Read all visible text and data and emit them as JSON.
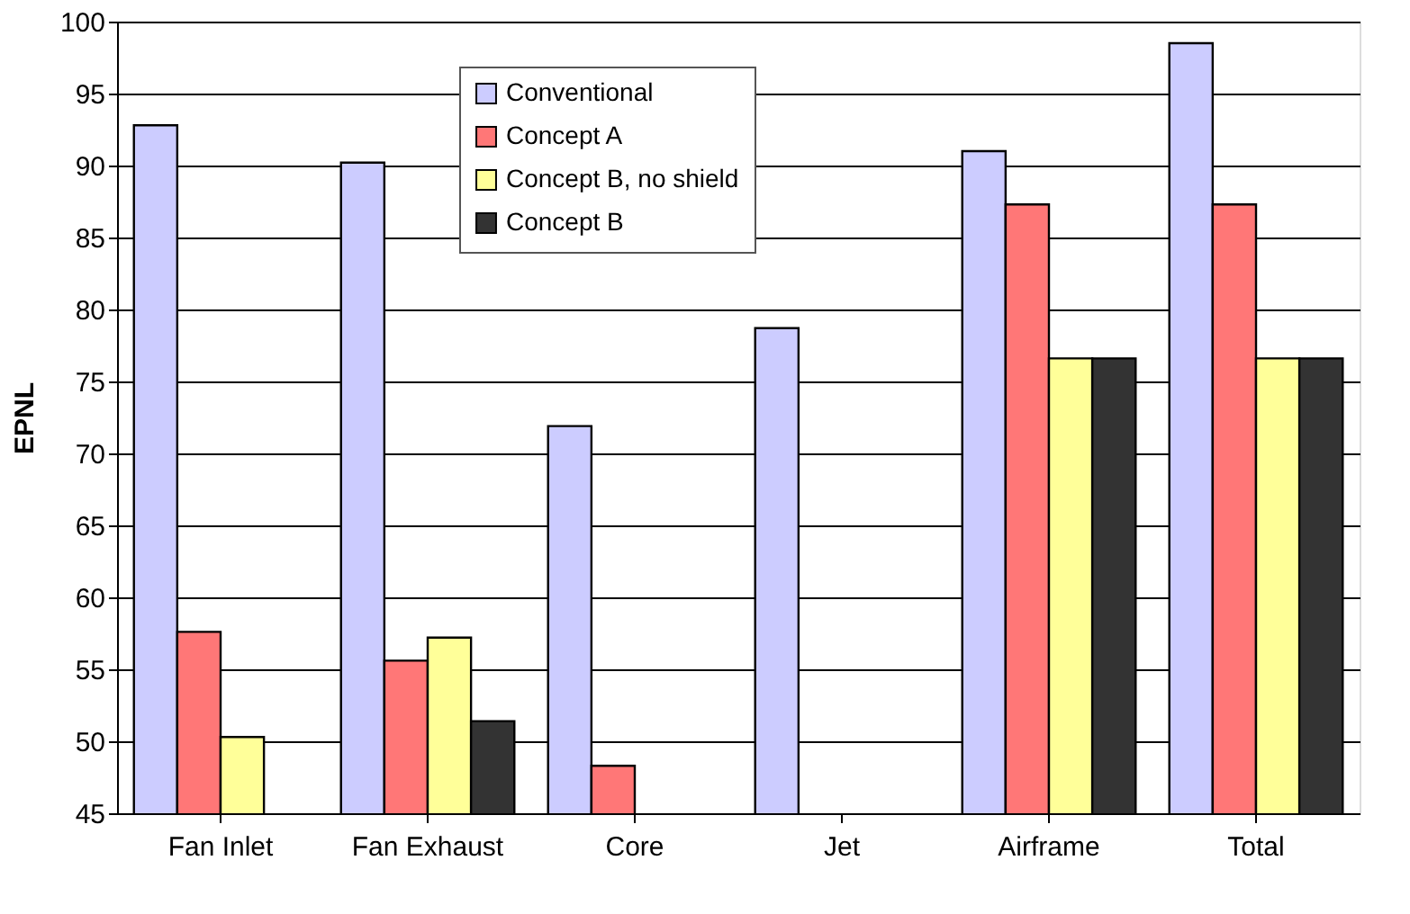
{
  "chart_data": {
    "type": "bar",
    "ylabel": "EPNL",
    "categories": [
      "Fan Inlet",
      "Fan Exhaust",
      "Core",
      "Jet",
      "Airframe",
      "Total"
    ],
    "series": [
      {
        "name": "Conventional",
        "color": "#ccccff",
        "values": [
          92.8,
          90.2,
          71.9,
          78.7,
          91.0,
          98.5
        ]
      },
      {
        "name": "Concept A",
        "color": "#ff7777",
        "values": [
          57.6,
          55.6,
          48.3,
          null,
          87.3,
          87.3
        ]
      },
      {
        "name": "Concept B, no shield",
        "color": "#ffff99",
        "values": [
          50.3,
          57.2,
          null,
          null,
          76.6,
          76.6
        ]
      },
      {
        "name": "Concept B",
        "color": "#333333",
        "values": [
          null,
          51.4,
          null,
          null,
          76.6,
          76.6
        ]
      }
    ],
    "ylim": [
      45,
      100
    ],
    "yticks": [
      45,
      50,
      55,
      60,
      65,
      70,
      75,
      80,
      85,
      90,
      95,
      100
    ],
    "grid": "y",
    "legend": "top"
  }
}
